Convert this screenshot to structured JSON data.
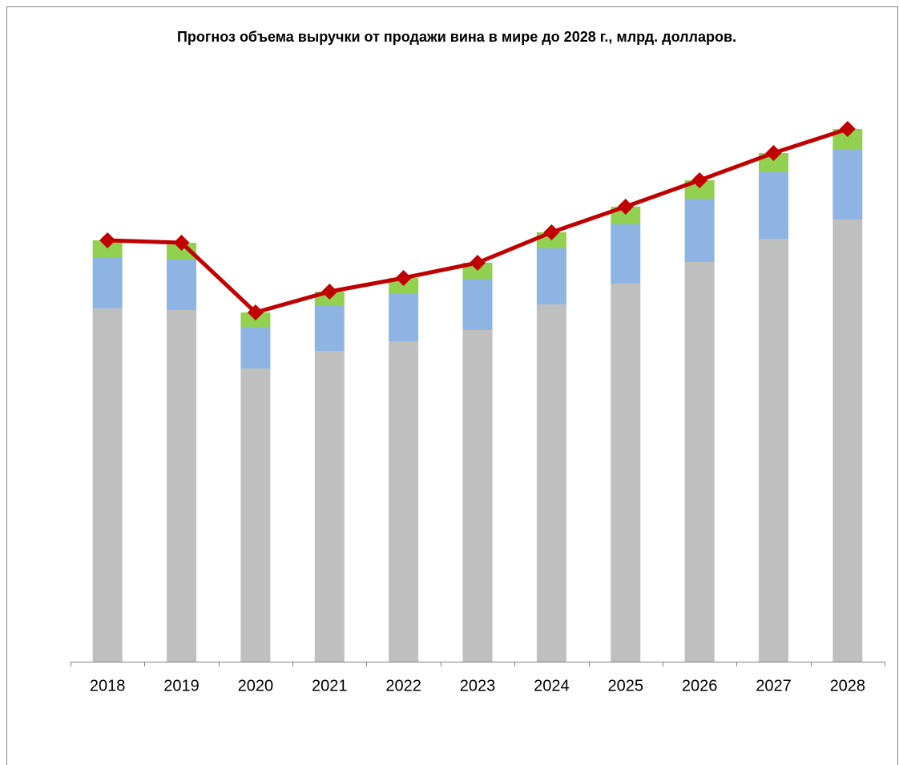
{
  "chart_data": {
    "type": "bar",
    "title": "Прогноз объема выручки от продажи вина в мире до 2028 г., млрд. долларов.",
    "categories": [
      "2018",
      "2019",
      "2020",
      "2021",
      "2022",
      "2023",
      "2024",
      "2025",
      "2026",
      "2027",
      "2028"
    ],
    "stacked": true,
    "ylim": [
      0,
      706
    ],
    "series": [
      {
        "color": "#bfbfbf",
        "values": [
          441,
          439,
          366,
          388,
          400,
          414,
          446,
          472,
          499,
          528,
          552
        ]
      },
      {
        "color": "#8eb4e3",
        "values": [
          63,
          63,
          52,
          56,
          60,
          64,
          70,
          74,
          79,
          83,
          88
        ]
      },
      {
        "color": "#92d050",
        "values": [
          22,
          21,
          18,
          18,
          19,
          20,
          20,
          22,
          23,
          24,
          25
        ]
      },
      {
        "type": "line",
        "color": "#c00000",
        "values": [
          526,
          523,
          436,
          462,
          479,
          498,
          536,
          568,
          601,
          635,
          665
        ]
      }
    ]
  }
}
